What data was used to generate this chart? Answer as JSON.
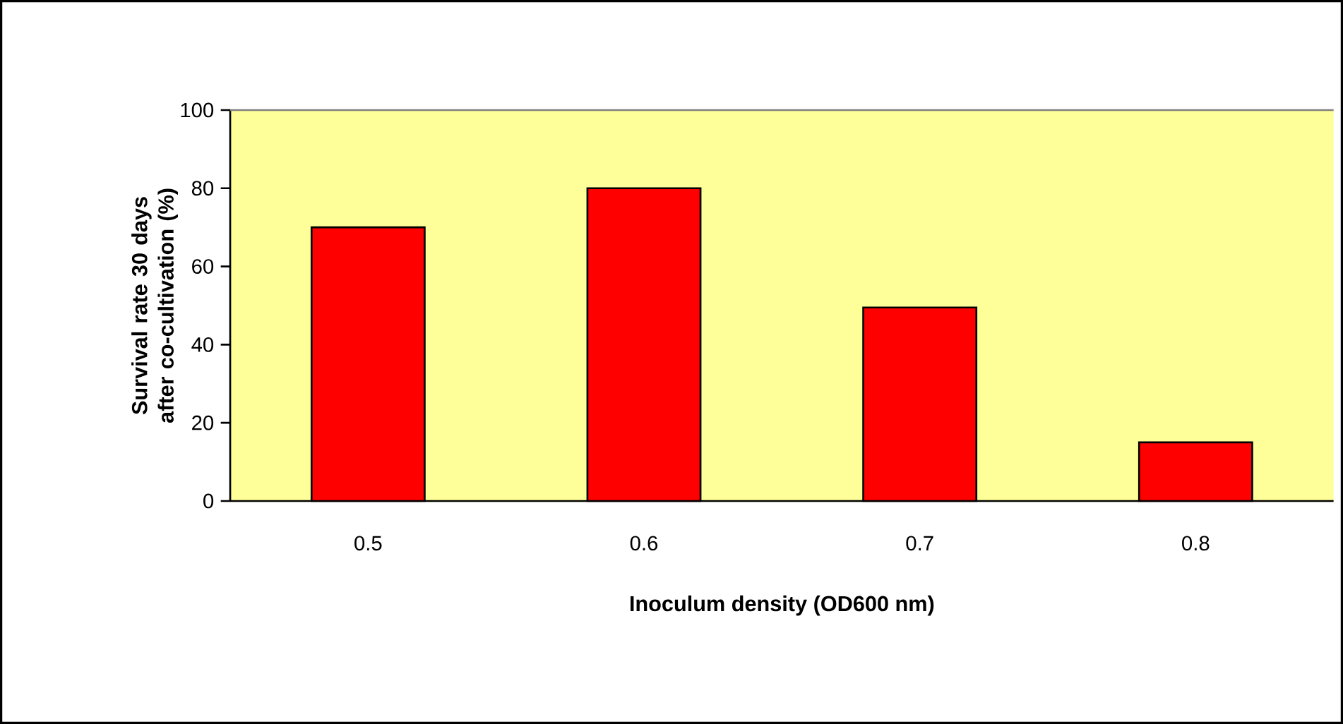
{
  "chart_data": {
    "type": "bar",
    "categories": [
      "0.5",
      "0.6",
      "0.7",
      "0.8"
    ],
    "values": [
      70,
      80,
      49.5,
      15
    ],
    "color": "#ff0000",
    "xlabel": "Inoculum density (OD600 nm)",
    "ylabel": "Survival rate 30 days after co-cultivation (%)",
    "ylim": [
      0,
      100
    ],
    "yticks": [
      0,
      20,
      40,
      60,
      80,
      100
    ]
  }
}
